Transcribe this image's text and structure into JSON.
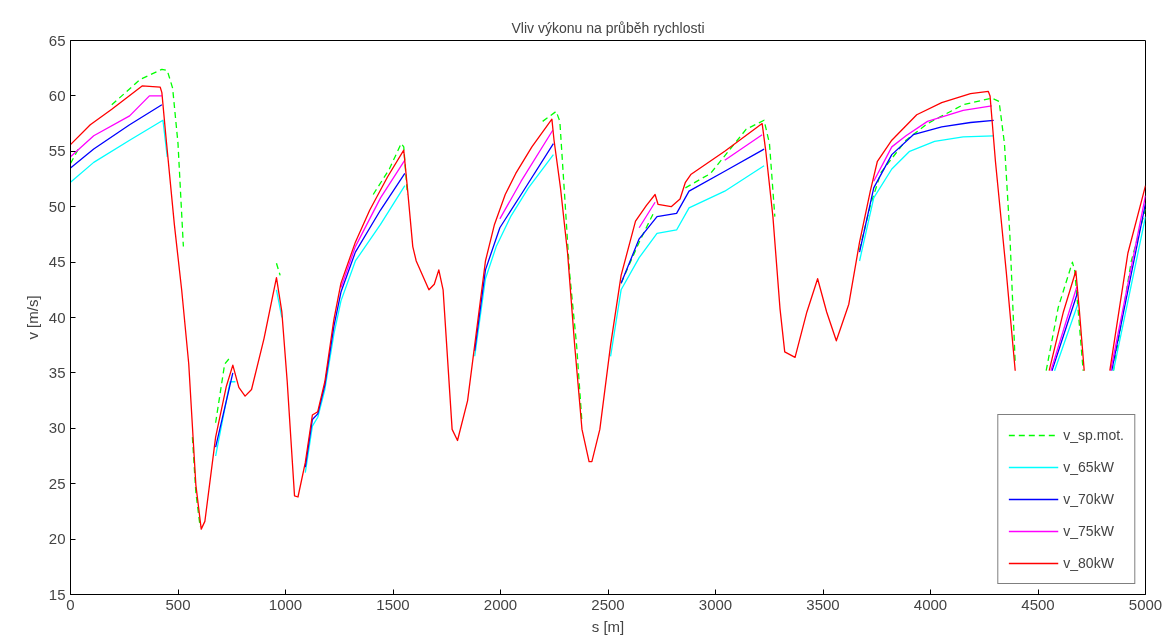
{
  "chart_data": {
    "type": "line",
    "title": "Vliv výkonu na průběh rychlosti",
    "xlabel": "s [m]",
    "ylabel": "v [m/s]",
    "xlim": [
      0,
      5000
    ],
    "xticks": [
      0,
      500,
      1000,
      1500,
      2000,
      2500,
      3000,
      3500,
      4000,
      4500,
      5000
    ],
    "ylim": [
      15,
      65
    ],
    "yticks": [
      15,
      20,
      25,
      30,
      35,
      40,
      45,
      50,
      55,
      60,
      65
    ],
    "grid": false,
    "legend": "bottom right",
    "marker": "none",
    "series": [
      {
        "name": "v_sp.mot.",
        "color": "#00ff00",
        "line_style": "dashed",
        "x": [
          0,
          42,
          92,
          192,
          325,
          425,
          450,
          475,
          500,
          525,
          542,
          567,
          583,
          603,
          625,
          675,
          717,
          747,
          775,
          812,
          842,
          900,
          958,
          975,
          992,
          1017,
          1042,
          1058,
          1092,
          1125,
          1150,
          1183,
          1225,
          1258,
          1325,
          1408,
          1483,
          1538,
          1550,
          1567,
          1592,
          1608,
          1667,
          1692,
          1713,
          1733,
          1775,
          1800,
          1847,
          1880,
          1930,
          1972,
          2022,
          2071,
          2146,
          2196,
          2259,
          2276,
          2296,
          2321,
          2354,
          2379,
          2412,
          2425,
          2462,
          2512,
          2561,
          2645,
          2711,
          2777,
          2860,
          2977,
          3143,
          3226,
          3251,
          3276,
          3300,
          3322,
          3370,
          3425,
          3472,
          3517,
          3558,
          3620,
          3670,
          3720,
          3770,
          3886,
          3986,
          4152,
          4285,
          4319,
          4344,
          4369,
          4394,
          4466,
          4538,
          4594,
          4660,
          4671,
          4693,
          4710,
          4780,
          4851,
          4934,
          5000
        ],
        "values": [
          53.9,
          55.4,
          null,
          59.2,
          61.5,
          62.4,
          62.3,
          60.7,
          55.7,
          46.4,
          null,
          29.2,
          24.2,
          21.1,
          null,
          30.5,
          35.8,
          36.5,
          null,
          null,
          null,
          null,
          44.9,
          43.8,
          null,
          null,
          null,
          null,
          null,
          null,
          null,
          null,
          null,
          null,
          null,
          51.1,
          53.4,
          55.7,
          55.4,
          51.1,
          null,
          null,
          null,
          null,
          null,
          null,
          null,
          null,
          null,
          null,
          null,
          null,
          null,
          null,
          null,
          57.7,
          58.6,
          57.7,
          51.7,
          44.1,
          37.5,
          30.5,
          null,
          null,
          null,
          null,
          43.1,
          46.8,
          49.4,
          null,
          51.7,
          53.0,
          57.0,
          57.8,
          55.7,
          49.1,
          null,
          null,
          null,
          null,
          null,
          null,
          null,
          null,
          46.1,
          50.1,
          53.1,
          56.0,
          57.5,
          59.2,
          59.8,
          59.5,
          55.7,
          47.5,
          35.9,
          null,
          35.2,
          40.9,
          45.0,
          44.2,
          39.2,
          35.2,
          null,
          35.2,
          45.1,
          49.8
        ]
      },
      {
        "name": "v_65kW",
        "color": "#00ffff",
        "line_style": "solid",
        "x": [
          0,
          108,
          275,
          430,
          450,
          483,
          517,
          550,
          583,
          608,
          625,
          675,
          742,
          767,
          812,
          842,
          900,
          958,
          983,
          1008,
          1042,
          1058,
          1092,
          1125,
          1150,
          1183,
          1225,
          1258,
          1325,
          1442,
          1555,
          1570,
          1592,
          1608,
          1667,
          1692,
          1713,
          1733,
          1775,
          1800,
          1847,
          1880,
          1930,
          1980,
          2047,
          2130,
          2246,
          2279,
          2312,
          2345,
          2379,
          2412,
          2425,
          2462,
          2512,
          2561,
          2645,
          2728,
          2819,
          2877,
          3043,
          3226,
          3245,
          3267,
          3300,
          3322,
          3370,
          3425,
          3475,
          3517,
          3562,
          3620,
          3670,
          3736,
          3820,
          3903,
          4019,
          4152,
          4294,
          4310,
          4352,
          4394,
          4480,
          4577,
          4685,
          4700,
          4715,
          4780,
          4851,
          5000
        ],
        "values": [
          52.2,
          54.0,
          56.0,
          57.8,
          54.5,
          null,
          null,
          null,
          null,
          null,
          null,
          27.5,
          34.2,
          34.2,
          null,
          null,
          null,
          42.5,
          40.0,
          null,
          null,
          null,
          26.0,
          30.2,
          31.0,
          33.5,
          38.5,
          41.5,
          45.1,
          48.4,
          51.9,
          null,
          null,
          null,
          null,
          null,
          null,
          null,
          null,
          null,
          null,
          36.5,
          43.5,
          46.4,
          49.1,
          51.7,
          54.7,
          null,
          null,
          null,
          null,
          null,
          null,
          null,
          36.5,
          42.5,
          45.4,
          47.6,
          47.9,
          49.9,
          51.4,
          53.7,
          null,
          null,
          null,
          null,
          null,
          null,
          null,
          null,
          null,
          null,
          45.1,
          50.8,
          53.4,
          55.0,
          55.9,
          56.3,
          56.4,
          null,
          null,
          null,
          null,
          35.2,
          41.2,
          null,
          null,
          null,
          35.2,
          49.1
        ]
      },
      {
        "name": "v_70kW",
        "color": "#0000ff",
        "line_style": "solid",
        "x": [
          0,
          108,
          275,
          425,
          442,
          483,
          517,
          550,
          583,
          608,
          625,
          675,
          755,
          812,
          842,
          900,
          958,
          983,
          1008,
          1042,
          1058,
          1092,
          1125,
          1150,
          1183,
          1225,
          1258,
          1325,
          1442,
          1555,
          1567,
          1592,
          1608,
          1667,
          1692,
          1713,
          1733,
          1775,
          1800,
          1847,
          1880,
          1930,
          1997,
          2096,
          2246,
          2279,
          2312,
          2345,
          2379,
          2412,
          2425,
          2462,
          2512,
          2561,
          2645,
          2728,
          2819,
          2877,
          3043,
          3226,
          3240,
          3267,
          3300,
          3322,
          3370,
          3425,
          3475,
          3517,
          3562,
          3620,
          3670,
          3736,
          3820,
          3920,
          4052,
          4186,
          4294,
          4310,
          4352,
          4394,
          4480,
          4565,
          4685,
          4700,
          4715,
          4780,
          4843,
          5000
        ],
        "values": [
          53.5,
          55.2,
          57.4,
          59.2,
          null,
          null,
          null,
          null,
          null,
          null,
          null,
          28.3,
          35.0,
          null,
          null,
          null,
          null,
          null,
          null,
          null,
          null,
          26.5,
          30.8,
          31.3,
          33.9,
          39.2,
          42.3,
          45.9,
          49.7,
          53.0,
          null,
          null,
          null,
          null,
          null,
          null,
          null,
          null,
          null,
          null,
          37.0,
          44.3,
          48.1,
          51.1,
          55.7,
          null,
          null,
          null,
          null,
          null,
          null,
          null,
          null,
          43.1,
          47.1,
          49.1,
          49.4,
          51.4,
          53.2,
          55.2,
          null,
          null,
          null,
          null,
          null,
          null,
          null,
          null,
          null,
          null,
          45.9,
          51.7,
          54.7,
          56.5,
          57.2,
          57.6,
          57.8,
          null,
          null,
          null,
          null,
          35.2,
          42.3,
          null,
          null,
          null,
          35.2,
          50.3
        ]
      },
      {
        "name": "v_75kW",
        "color": "#ff00ff",
        "line_style": "solid",
        "x": [
          0,
          108,
          275,
          367,
          425,
          442,
          483,
          517,
          550,
          583,
          608,
          625,
          675,
          755,
          812,
          842,
          900,
          958,
          983,
          1008,
          1042,
          1058,
          1092,
          1125,
          1150,
          1183,
          1225,
          1258,
          1325,
          1442,
          1555,
          1567,
          1592,
          1608,
          1667,
          1692,
          1713,
          1733,
          1775,
          1800,
          1847,
          1880,
          1930,
          1997,
          2096,
          2243,
          2279,
          2312,
          2345,
          2379,
          2412,
          2425,
          2462,
          2512,
          2561,
          2645,
          2719,
          2733,
          2794,
          2835,
          2860,
          3043,
          3217,
          3234,
          3267,
          3300,
          3322,
          3370,
          3425,
          3475,
          3517,
          3562,
          3620,
          3670,
          3736,
          3820,
          3886,
          3986,
          4152,
          4285,
          4302,
          4352,
          4394,
          4480,
          4560,
          4681,
          4695,
          4705,
          4770,
          4838,
          5000
        ],
        "values": [
          54.5,
          56.4,
          58.2,
          60.0,
          60.0,
          null,
          null,
          null,
          null,
          null,
          null,
          null,
          null,
          null,
          null,
          null,
          null,
          null,
          null,
          null,
          null,
          null,
          null,
          null,
          null,
          null,
          null,
          42.7,
          46.4,
          50.8,
          54.2,
          null,
          null,
          null,
          null,
          null,
          null,
          null,
          null,
          null,
          null,
          null,
          null,
          48.9,
          52.3,
          56.9,
          null,
          null,
          null,
          null,
          null,
          null,
          null,
          null,
          null,
          48.1,
          50.4,
          null,
          null,
          null,
          null,
          54.2,
          56.5,
          null,
          null,
          null,
          null,
          null,
          null,
          null,
          null,
          null,
          null,
          null,
          52.3,
          55.4,
          56.4,
          57.7,
          58.7,
          59.1,
          null,
          null,
          null,
          null,
          35.2,
          42.8,
          null,
          null,
          null,
          35.2,
          51.0
        ]
      },
      {
        "name": "v_80kW",
        "color": "#ff0000",
        "line_style": "solid",
        "x": [
          0,
          92,
          192,
          333,
          417,
          425,
          442,
          483,
          517,
          550,
          583,
          608,
          625,
          675,
          725,
          755,
          783,
          812,
          842,
          900,
          958,
          983,
          1008,
          1042,
          1058,
          1092,
          1125,
          1150,
          1183,
          1225,
          1258,
          1325,
          1392,
          1475,
          1550,
          1567,
          1592,
          1608,
          1667,
          1692,
          1713,
          1733,
          1775,
          1800,
          1847,
          1880,
          1930,
          1972,
          2022,
          2071,
          2146,
          2239,
          2249,
          2279,
          2312,
          2345,
          2379,
          2412,
          2425,
          2462,
          2512,
          2561,
          2628,
          2678,
          2719,
          2733,
          2794,
          2835,
          2860,
          2885,
          3043,
          3217,
          3234,
          3267,
          3300,
          3322,
          3370,
          3425,
          3475,
          3517,
          3562,
          3620,
          3670,
          3720,
          3753,
          3820,
          3936,
          4052,
          4186,
          4269,
          4277,
          4302,
          4352,
          4394,
          4470,
          4552,
          4618,
          4676,
          4693,
          4715,
          4770,
          4834,
          4918,
          5000
        ],
        "values": [
          55.6,
          57.4,
          58.8,
          60.9,
          60.8,
          60.3,
          56.7,
          48.4,
          42.5,
          35.8,
          24.9,
          20.9,
          21.6,
          29.2,
          33.8,
          35.7,
          33.7,
          32.9,
          33.5,
          38.1,
          43.6,
          40.5,
          34.2,
          23.9,
          23.8,
          26.9,
          31.2,
          31.5,
          34.2,
          39.8,
          43.1,
          46.8,
          49.7,
          52.7,
          55.1,
          51.7,
          46.4,
          45.1,
          42.5,
          43.0,
          44.3,
          42.5,
          29.9,
          28.9,
          32.5,
          37.5,
          45.1,
          48.4,
          51.1,
          53.0,
          55.4,
          57.9,
          56.0,
          51.7,
          45.8,
          37.5,
          29.9,
          27.0,
          27.0,
          29.9,
          37.5,
          43.8,
          48.7,
          50.1,
          51.1,
          50.2,
          50.0,
          50.7,
          52.2,
          52.9,
          55.0,
          57.5,
          55.0,
          49.1,
          40.8,
          36.9,
          36.4,
          40.5,
          43.5,
          40.5,
          37.9,
          41.2,
          46.8,
          51.4,
          54.1,
          56.0,
          58.3,
          59.4,
          60.2,
          60.4,
          60.0,
          54.1,
          44.2,
          35.2,
          null,
          35.2,
          40.5,
          44.2,
          40.5,
          35.2,
          null,
          35.2,
          45.8,
          51.9
        ]
      }
    ]
  }
}
